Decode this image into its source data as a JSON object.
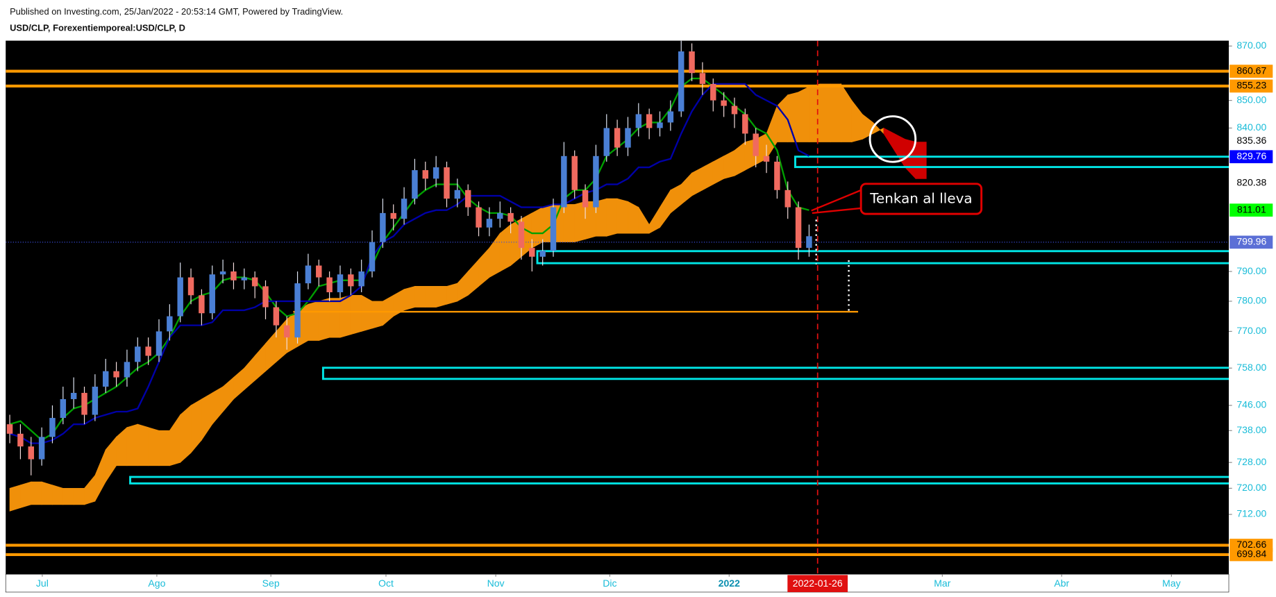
{
  "header": {
    "published": "Published on Investing.com, 25/Jan/2022 - 20:53:14 GMT, Powered by TradingView.",
    "symbol": "USD/CLP, Forexentiemporeal:USD/CLP, D"
  },
  "chart_data": {
    "type": "candlestick",
    "log_scale": true,
    "xlim": [
      0,
      114
    ],
    "ylim": [
      694,
      872
    ],
    "xticks": [
      {
        "value": 3.05,
        "label": "Jul"
      },
      {
        "value": 13.8,
        "label": "Ago"
      },
      {
        "value": 24.5,
        "label": "Sep"
      },
      {
        "value": 35.3,
        "label": "Oct"
      },
      {
        "value": 45.6,
        "label": "Nov"
      },
      {
        "value": 56.3,
        "label": "Dic"
      },
      {
        "value": 67.5,
        "label": "2022",
        "bold": true
      },
      {
        "value": 87.5,
        "label": "Mar"
      },
      {
        "value": 98.7,
        "label": "Abr"
      },
      {
        "value": 109,
        "label": "May"
      }
    ],
    "marker_date": {
      "value": 75.8,
      "label": "2022-01-26",
      "color": "#e01010"
    },
    "yticks": [
      {
        "value": 870,
        "label": "870.00"
      },
      {
        "value": 850,
        "label": "850.00"
      },
      {
        "value": 840,
        "label": "840.00"
      },
      {
        "value": 790,
        "label": "790.00"
      },
      {
        "value": 780,
        "label": "780.00"
      },
      {
        "value": 770,
        "label": "770.00"
      },
      {
        "value": 758,
        "label": "758.00"
      },
      {
        "value": 746,
        "label": "746.00"
      },
      {
        "value": 738,
        "label": "738.00"
      },
      {
        "value": 728,
        "label": "728.00"
      },
      {
        "value": 720,
        "label": "720.00"
      },
      {
        "value": 712,
        "label": "712.00"
      }
    ],
    "up_color": "#4a7fd4",
    "down_color": "#f06a5f",
    "open": [
      740,
      737,
      733,
      729,
      736,
      742,
      748,
      750,
      743,
      752,
      757,
      755,
      760,
      765,
      762,
      770,
      775,
      788,
      782,
      776,
      789,
      790,
      787,
      788,
      785,
      778,
      772,
      768,
      786,
      792,
      788,
      783,
      789,
      785,
      790,
      800,
      810,
      808,
      815,
      825,
      822,
      826,
      815,
      818,
      812,
      805,
      808,
      810,
      807,
      798,
      795,
      797,
      812,
      830,
      818,
      812,
      830,
      840,
      833,
      840,
      845,
      840,
      842,
      846,
      868,
      860,
      856,
      850,
      848,
      845,
      838,
      830,
      828,
      818,
      812,
      798
    ],
    "high": [
      743,
      740,
      736,
      739,
      746,
      752,
      755,
      752,
      756,
      761,
      760,
      764,
      768,
      768,
      774,
      779,
      793,
      791,
      784,
      792,
      794,
      793,
      791,
      790,
      787,
      780,
      775,
      790,
      796,
      794,
      790,
      792,
      791,
      794,
      804,
      815,
      813,
      819,
      829,
      828,
      830,
      828,
      822,
      820,
      814,
      812,
      814,
      812,
      809,
      801,
      801,
      815,
      835,
      832,
      820,
      834,
      845,
      843,
      844,
      849,
      847,
      846,
      850,
      872,
      871,
      864,
      858,
      853,
      851,
      847,
      840,
      834,
      830,
      821,
      814,
      806
    ],
    "low": [
      734,
      729,
      724,
      727,
      734,
      740,
      745,
      740,
      741,
      750,
      752,
      752,
      757,
      759,
      760,
      767,
      773,
      779,
      772,
      774,
      786,
      784,
      784,
      781,
      774,
      768,
      764,
      766,
      784,
      785,
      780,
      781,
      782,
      783,
      788,
      798,
      804,
      806,
      813,
      818,
      819,
      812,
      812,
      809,
      802,
      802,
      805,
      803,
      794,
      790,
      792,
      795,
      810,
      815,
      808,
      810,
      828,
      830,
      830,
      837,
      836,
      837,
      839,
      844,
      857,
      852,
      846,
      844,
      840,
      834,
      826,
      824,
      815,
      808,
      794,
      795
    ],
    "close": [
      737,
      733,
      729,
      736,
      742,
      748,
      750,
      743,
      752,
      757,
      755,
      760,
      765,
      762,
      770,
      775,
      788,
      782,
      776,
      789,
      790,
      787,
      788,
      785,
      778,
      772,
      768,
      786,
      792,
      788,
      783,
      789,
      785,
      790,
      800,
      810,
      808,
      815,
      825,
      822,
      826,
      815,
      818,
      812,
      805,
      808,
      810,
      807,
      798,
      795,
      797,
      812,
      830,
      818,
      812,
      830,
      840,
      833,
      840,
      845,
      840,
      842,
      846,
      868,
      860,
      856,
      850,
      848,
      845,
      838,
      830,
      828,
      818,
      812,
      798,
      802
    ],
    "lines": [
      {
        "color": "#00a000",
        "values": [
          740,
          741,
          738,
          735,
          737,
          742,
          745,
          746,
          748,
          750,
          752,
          755,
          758,
          760,
          763,
          768,
          775,
          780,
          782,
          783,
          787,
          788,
          788,
          787,
          783,
          778,
          775,
          776,
          780,
          785,
          786,
          787,
          787,
          787,
          792,
          800,
          805,
          810,
          815,
          818,
          820,
          820,
          820,
          815,
          812,
          810,
          810,
          809,
          805,
          803,
          803,
          806,
          815,
          818,
          818,
          822,
          830,
          833,
          836,
          840,
          842,
          842,
          847,
          855,
          858,
          858,
          855,
          852,
          848,
          845,
          840,
          838,
          832,
          818,
          812,
          811
        ]
      },
      {
        "color": "#0000a8",
        "values": [
          737,
          736,
          734,
          734,
          735,
          737,
          740,
          740,
          742,
          743,
          744,
          744,
          745,
          752,
          760,
          768,
          772,
          772,
          772,
          773,
          777,
          777,
          777,
          778,
          780,
          780,
          780,
          780,
          780,
          780,
          780,
          780,
          782,
          785,
          795,
          800,
          802,
          806,
          808,
          810,
          811,
          811,
          813,
          816,
          816,
          816,
          816,
          814,
          812,
          812,
          812,
          813,
          813,
          815,
          817,
          818,
          820,
          820,
          822,
          826,
          826,
          828,
          829,
          838,
          846,
          852,
          856,
          856,
          856,
          856,
          852,
          850,
          848,
          843,
          832,
          830
        ]
      }
    ],
    "cloud": {
      "up_color": "#f0900a",
      "down_color": "#d00000",
      "senkou_a": [
        720,
        721,
        722,
        722,
        721,
        720,
        720,
        720,
        724,
        732,
        736,
        739,
        740,
        739,
        738,
        738,
        743,
        746,
        748,
        750,
        752,
        755,
        758,
        762,
        766,
        770,
        774,
        777,
        779,
        780,
        781,
        781,
        782,
        782,
        780,
        780,
        782,
        784,
        785,
        785,
        785,
        785,
        786,
        790,
        794,
        798,
        803,
        806,
        808,
        810,
        812,
        813,
        813,
        813,
        814,
        814,
        815,
        815,
        814,
        812,
        806,
        812,
        818,
        820,
        824,
        826,
        828,
        830,
        832,
        835,
        836,
        838,
        848,
        852,
        853,
        855,
        856,
        856,
        856,
        850,
        845,
        842,
        838,
        832,
        826,
        822,
        822
      ],
      "senkou_b": [
        713,
        714,
        715,
        715,
        715,
        715,
        715,
        715,
        716,
        722,
        727,
        727,
        727,
        727,
        727,
        727,
        728,
        731,
        735,
        740,
        744,
        748,
        751,
        754,
        757,
        760,
        763,
        765,
        767,
        767,
        768,
        768,
        769,
        770,
        771,
        772,
        775,
        777,
        778,
        778,
        778,
        779,
        780,
        782,
        785,
        788,
        790,
        792,
        795,
        798,
        800,
        800,
        800,
        800,
        801,
        802,
        802,
        803,
        803,
        803,
        803,
        805,
        810,
        813,
        816,
        818,
        820,
        822,
        823,
        825,
        827,
        829,
        835,
        835,
        835,
        835,
        835,
        835,
        835,
        835,
        836,
        838,
        840,
        838,
        836,
        835,
        835
      ]
    },
    "price_labels": [
      {
        "value": 860.67,
        "bg": "#ff9900",
        "fg": "#000000",
        "line_color": "#ff9900"
      },
      {
        "value": 855.23,
        "bg": "#ff9900",
        "fg": "#000000",
        "line_color": "#ff9900"
      },
      {
        "value": 835.36,
        "bg": "#ffffff",
        "fg": "#000000"
      },
      {
        "value": 829.76,
        "bg": "#0000ff",
        "fg": "#ffffff"
      },
      {
        "value": 820.38,
        "bg": "#ffffff",
        "fg": "#000000"
      },
      {
        "value": 811.01,
        "bg": "#00ff00",
        "fg": "#000000"
      },
      {
        "value": 799.96,
        "bg": "#5b6fd6",
        "fg": "#ffffff",
        "line_color": "#3b4fe0",
        "line_style": "dotted"
      },
      {
        "value": 702.66,
        "bg": "#ff9900",
        "fg": "#000000",
        "line_color": "#ff9900"
      },
      {
        "value": 699.84,
        "bg": "#ff9900",
        "fg": "#000000",
        "line_color": "#ff9900"
      }
    ],
    "zones": [
      {
        "start": 73.7,
        "top": 829.76,
        "bottom": 826.1,
        "color": "#00e5e5"
      },
      {
        "start": 49.5,
        "top": 796.9,
        "bottom": 792.8,
        "color": "#00e5e5"
      },
      {
        "start": 29.4,
        "top": 758.1,
        "bottom": 754.5,
        "color": "#00e5e5"
      },
      {
        "start": 11.3,
        "top": 723.5,
        "bottom": 721.5,
        "color": "#00e5e5"
      }
    ],
    "hline": {
      "value": 776.5,
      "start": 26.6,
      "end": 79.6,
      "color": "#ff9900"
    },
    "annotation": "Tenkan al lleva"
  }
}
